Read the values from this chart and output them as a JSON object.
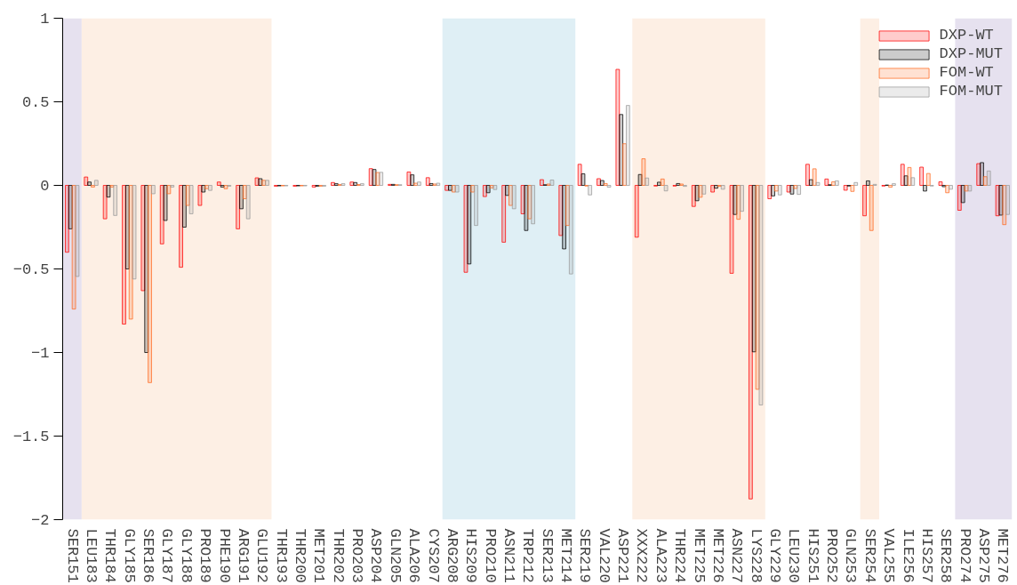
{
  "chart_data": {
    "type": "bar",
    "categories": [
      "SER151",
      "LEU183",
      "THR184",
      "GLY185",
      "SER186",
      "GLY187",
      "GLY188",
      "PRO189",
      "PHE190",
      "ARG191",
      "GLU192",
      "THR193",
      "THR200",
      "MET201",
      "THR202",
      "PRO203",
      "ASP204",
      "GLN205",
      "ALA206",
      "CYS207",
      "ARG208",
      "HIS209",
      "PRO210",
      "ASN211",
      "TRP212",
      "SER213",
      "MET214",
      "SER219",
      "VAL220",
      "ASP221",
      "XXX222",
      "ALA223",
      "THR224",
      "MET225",
      "MET226",
      "ASN227",
      "LYS228",
      "GLY229",
      "LEU230",
      "HIS251",
      "PRO252",
      "GLN253",
      "SER254",
      "VAL255",
      "ILE256",
      "HIS257",
      "SER258",
      "PRO274",
      "ASP275",
      "MET276"
    ],
    "series": [
      {
        "name": "DXP-WT",
        "color": "#ff0000",
        "values": [
          -0.4,
          0.05,
          -0.2,
          -0.83,
          -0.63,
          -0.35,
          -0.49,
          -0.12,
          0.02,
          -0.26,
          0.045,
          -0.005,
          -0.005,
          -0.01,
          0.017,
          0.02,
          0.1,
          0.006,
          0.08,
          0.046,
          -0.03,
          -0.52,
          -0.067,
          -0.34,
          -0.17,
          0.034,
          -0.3,
          0.126,
          0.04,
          0.694,
          -0.31,
          -0.004,
          -0.004,
          -0.126,
          -0.04,
          -0.526,
          -1.876,
          -0.08,
          -0.04,
          0.126,
          0.038,
          -0.029,
          -0.182,
          -0.004,
          0.126,
          0.109,
          0.021,
          -0.149,
          0.13,
          -0.182
        ]
      },
      {
        "name": "DXP-MUT",
        "color": "#000000",
        "values": [
          -0.26,
          0.02,
          -0.07,
          -0.5,
          -1.0,
          -0.21,
          -0.25,
          -0.04,
          -0.01,
          -0.14,
          0.04,
          -0.003,
          -0.003,
          -0.005,
          0.01,
          0.017,
          0.095,
          0.006,
          0.063,
          0.011,
          -0.03,
          -0.47,
          -0.044,
          -0.06,
          -0.27,
          0.004,
          -0.38,
          0.069,
          0.029,
          0.424,
          0.065,
          0.019,
          0.011,
          -0.092,
          -0.017,
          -0.174,
          -0.996,
          -0.063,
          -0.052,
          0.034,
          0.004,
          -0.004,
          0.027,
          0.002,
          0.057,
          -0.034,
          -0.008,
          -0.103,
          0.136,
          -0.178
        ]
      },
      {
        "name": "FOM-WT",
        "color": "#ff6a20",
        "values": [
          -0.74,
          -0.01,
          -0.01,
          -0.8,
          -1.18,
          -0.05,
          -0.12,
          -0.02,
          -0.02,
          -0.08,
          0.03,
          -0.003,
          -0.003,
          -0.005,
          0.005,
          0.005,
          0.077,
          0.004,
          0.013,
          0.008,
          -0.04,
          -0.04,
          -0.015,
          -0.12,
          -0.2,
          0.008,
          -0.24,
          -0.004,
          0.011,
          0.249,
          0.159,
          0.038,
          0.008,
          -0.071,
          -0.006,
          -0.203,
          -1.22,
          -0.034,
          -0.019,
          0.099,
          0.021,
          -0.036,
          -0.27,
          -0.011,
          0.107,
          0.071,
          -0.044,
          -0.034,
          0.052,
          -0.235
        ]
      },
      {
        "name": "FOM-MUT",
        "color": "#999999",
        "values": [
          -0.545,
          0.03,
          -0.18,
          -0.56,
          -0.05,
          -0.01,
          -0.17,
          -0.03,
          -0.005,
          -0.2,
          0.03,
          -0.003,
          -0.003,
          -0.005,
          0.01,
          0.01,
          0.078,
          0.004,
          0.02,
          0.013,
          -0.04,
          -0.24,
          -0.025,
          -0.14,
          -0.23,
          0.032,
          -0.53,
          -0.057,
          -0.011,
          0.478,
          0.044,
          -0.033,
          -0.006,
          -0.052,
          -0.023,
          -0.155,
          -1.314,
          -0.057,
          -0.054,
          0.017,
          0.027,
          0.017,
          0.006,
          0.01,
          0.046,
          -0.004,
          -0.023,
          -0.034,
          0.086,
          -0.174
        ]
      }
    ],
    "ylim": [
      -2,
      1
    ],
    "yticks": [
      {
        "value": -2,
        "label": "−2"
      },
      {
        "value": -1.5,
        "label": "−1.5"
      },
      {
        "value": -1,
        "label": "−1"
      },
      {
        "value": -0.5,
        "label": "−0.5"
      },
      0,
      0.5,
      1
    ],
    "bands": [
      {
        "axis": "x",
        "from": "SER151",
        "to": "SER151",
        "color": "#e6e1ef"
      },
      {
        "axis": "x",
        "from": "LEU183",
        "to": "GLU192",
        "color": "#fdefe4"
      },
      {
        "axis": "x",
        "from": "ARG208",
        "to": "MET214",
        "color": "#dfeff5"
      },
      {
        "axis": "x",
        "from": "XXX222",
        "to": "LYS228",
        "color": "#fdefe4"
      },
      {
        "axis": "x",
        "from": "SER254",
        "to": "SER254",
        "color": "#fdefe4"
      },
      {
        "axis": "x",
        "from": "PRO274",
        "to": "MET276",
        "color": "#e6e1ef"
      }
    ],
    "legend": "top right"
  }
}
